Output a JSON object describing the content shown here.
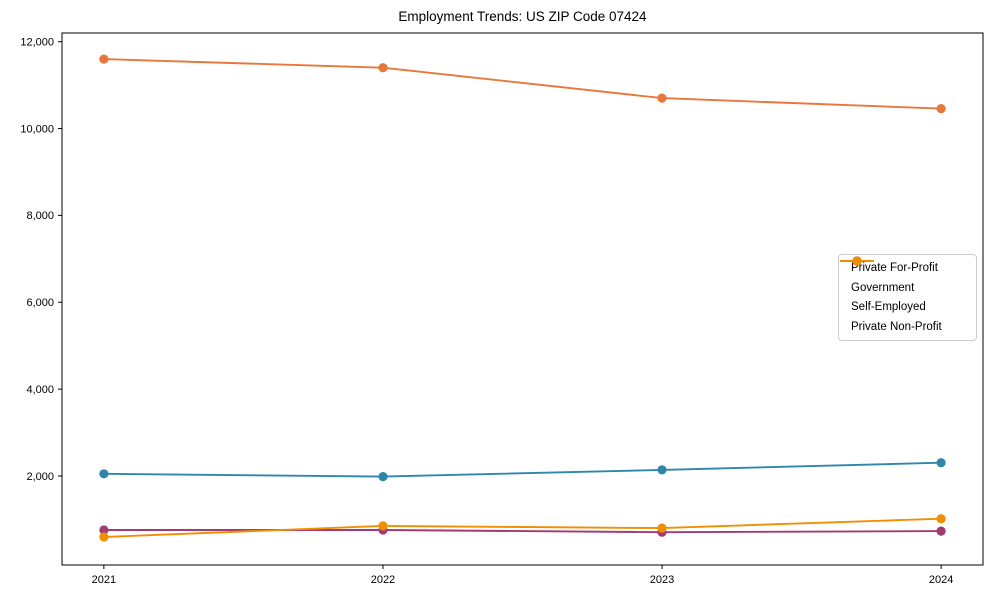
{
  "title": "Employment Trends: US ZIP Code 07424",
  "colors": {
    "background": "#ffffff",
    "axis": "#000000",
    "legend_border": "#cbcbcb",
    "series": [
      "#E8773B",
      "#2E86AB",
      "#A23B72",
      "#F18F01"
    ]
  },
  "chart_data": {
    "type": "line",
    "title": "Employment Trends: US ZIP Code 07424",
    "xlabel": "",
    "ylabel": "",
    "x": [
      2021,
      2022,
      2023,
      2024
    ],
    "x_tick_labels": [
      "2021",
      "2022",
      "2023",
      "2024"
    ],
    "series": [
      {
        "name": "Private For-Profit",
        "color": "#E8773B",
        "values": [
          11600,
          11400,
          10700,
          10460
        ]
      },
      {
        "name": "Government",
        "color": "#2E86AB",
        "values": [
          2050,
          1985,
          2140,
          2305
        ]
      },
      {
        "name": "Self-Employed",
        "color": "#A23B72",
        "values": [
          755,
          755,
          705,
          730
        ]
      },
      {
        "name": "Private Non-Profit",
        "color": "#F18F01",
        "values": [
          595,
          850,
          800,
          1015
        ]
      }
    ],
    "y_ticks": [
      2000,
      4000,
      6000,
      8000,
      10000,
      12000
    ],
    "y_tick_labels": [
      "2,000",
      "4,000",
      "6,000",
      "8,000",
      "10,000",
      "12,000"
    ],
    "ylim": [
      -50,
      12200
    ],
    "xlim": [
      2020.85,
      2024.15
    ],
    "grid": false,
    "legend_position": "center right",
    "marker": "circle"
  }
}
